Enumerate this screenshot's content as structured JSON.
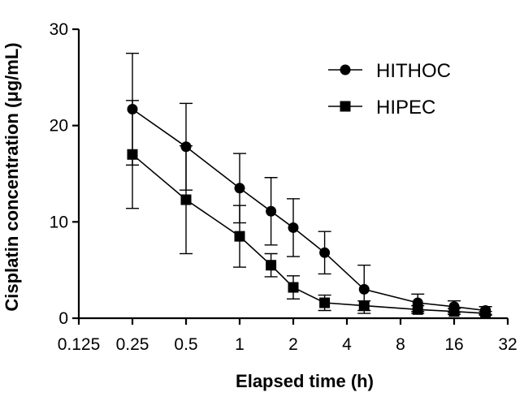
{
  "chart_data": {
    "type": "line",
    "title": "",
    "xlabel": "Elapsed time (h)",
    "ylabel": "Cisplatin concentration (μg/mL)",
    "x_scale": "log2",
    "xlim": [
      0.125,
      32
    ],
    "ylim": [
      0,
      30
    ],
    "x_ticks": [
      0.125,
      0.25,
      0.5,
      1,
      2,
      4,
      8,
      16,
      32
    ],
    "x_tick_labels": [
      "0.125",
      "0.25",
      "0.5",
      "1",
      "2",
      "4",
      "8",
      "16",
      "32"
    ],
    "y_ticks": [
      0,
      10,
      20,
      30
    ],
    "y_tick_labels": [
      "0",
      "10",
      "20",
      "30"
    ],
    "grid": false,
    "legend_position": "top-right",
    "series": [
      {
        "name": "HITHOC",
        "marker": "circle",
        "color": "#000000",
        "x": [
          0.25,
          0.5,
          1,
          1.5,
          2,
          3,
          5,
          10,
          16,
          24
        ],
        "y": [
          21.7,
          17.8,
          13.5,
          11.1,
          9.4,
          6.8,
          3.0,
          1.6,
          1.2,
          0.8
        ],
        "error": [
          5.8,
          4.5,
          3.6,
          3.5,
          3.0,
          2.2,
          2.5,
          0.9,
          0.6,
          0.4
        ]
      },
      {
        "name": "HIPEC",
        "marker": "square",
        "color": "#000000",
        "x": [
          0.25,
          0.5,
          1,
          1.5,
          2,
          3,
          5,
          10,
          16,
          24
        ],
        "y": [
          17.0,
          12.3,
          8.5,
          5.5,
          3.2,
          1.6,
          1.3,
          0.9,
          0.7,
          0.5
        ],
        "error": [
          5.6,
          5.6,
          3.2,
          1.2,
          1.2,
          0.8,
          0.5,
          0.4,
          0.3,
          0.2
        ]
      }
    ]
  }
}
